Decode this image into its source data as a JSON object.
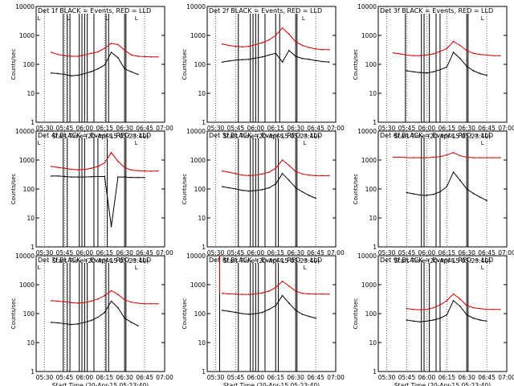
{
  "figure": {
    "ylabel": "Counts/sec",
    "xlabel": "Start Time (20-Apr-15 05:23:40)",
    "xticks": [
      "05:30",
      "05:45",
      "06:00",
      "06:15",
      "06:30",
      "06:45",
      "07:00"
    ],
    "yticks": [
      "1",
      "10",
      "100",
      "1000",
      "10000"
    ],
    "colors": {
      "events": "#000000",
      "lld": "#d00000",
      "axes": "#000000",
      "background": "#ffffff"
    }
  },
  "chart_data": [
    {
      "type": "line",
      "title": "Det 1f BLACK = Events, RED = LLD",
      "xlabel": "Start Time (20-Apr-15 05:23:40)",
      "ylabel": "Counts/sec",
      "xlim": [
        "05:23",
        "07:00"
      ],
      "ylim": [
        1,
        10000
      ],
      "yscale": "log",
      "x": [
        "05:35",
        "05:40",
        "05:45",
        "05:50",
        "05:55",
        "06:00",
        "06:05",
        "06:10",
        "06:15",
        "06:20",
        "06:25",
        "06:30",
        "06:35",
        "06:40",
        "06:45",
        "06:50",
        "06:55"
      ],
      "series": [
        {
          "name": "LLD",
          "color": "#d00000",
          "values": [
            260,
            220,
            200,
            190,
            190,
            210,
            240,
            270,
            360,
            530,
            480,
            310,
            210,
            190,
            185,
            180,
            180
          ]
        },
        {
          "name": "Events",
          "color": "#000000",
          "values": [
            50,
            48,
            45,
            40,
            42,
            48,
            56,
            70,
            95,
            260,
            170,
            70,
            55,
            45,
            null,
            null,
            null
          ]
        }
      ],
      "markers": {
        "lines": [
          "05:44",
          "05:47",
          "05:49",
          "05:56",
          "05:58",
          "06:00",
          "06:02",
          "06:07",
          "06:16",
          "06:18",
          "06:30",
          "06:31"
        ],
        "letters": {
          "05:24": "L",
          "05:46": "L",
          "06:15": "L",
          "06:37": "L"
        }
      }
    },
    {
      "type": "line",
      "title": "Det 2f BLACK = Events, RED = LLD",
      "xlabel": "Start Time (20-Apr-15 05:23:40)",
      "ylabel": "Counts/sec",
      "xlim": [
        "05:23",
        "07:00"
      ],
      "ylim": [
        1,
        10000
      ],
      "yscale": "log",
      "x": [
        "05:35",
        "05:40",
        "05:45",
        "05:50",
        "05:55",
        "06:00",
        "06:05",
        "06:10",
        "06:15",
        "06:20",
        "06:25",
        "06:30",
        "06:35",
        "06:40",
        "06:45",
        "06:50",
        "06:55"
      ],
      "series": [
        {
          "name": "LLD",
          "color": "#d00000",
          "values": [
            500,
            450,
            420,
            400,
            420,
            480,
            560,
            700,
            1000,
            1800,
            1100,
            600,
            450,
            380,
            340,
            320,
            320
          ]
        },
        {
          "name": "Events",
          "color": "#000000",
          "values": [
            120,
            130,
            140,
            145,
            150,
            165,
            180,
            210,
            240,
            120,
            300,
            190,
            160,
            150,
            135,
            125,
            120
          ]
        }
      ],
      "markers": {
        "lines": [
          "05:47",
          "05:56",
          "05:58",
          "06:00",
          "06:02",
          "06:07",
          "06:15",
          "06:18",
          "06:30",
          "06:31"
        ],
        "letters": {
          "06:34": "L"
        }
      }
    },
    {
      "type": "line",
      "title": "Det 3f BLACK = Events, RED = LLD",
      "xlabel": "Start Time (20-Apr-15 05:23:40)",
      "ylabel": "Counts/sec",
      "xlim": [
        "05:23",
        "07:00"
      ],
      "ylim": [
        1,
        10000
      ],
      "yscale": "log",
      "x": [
        "05:35",
        "05:40",
        "05:45",
        "05:50",
        "05:55",
        "06:00",
        "06:05",
        "06:10",
        "06:15",
        "06:20",
        "06:25",
        "06:30",
        "06:35",
        "06:40",
        "06:45",
        "06:50",
        "06:55"
      ],
      "series": [
        {
          "name": "LLD",
          "color": "#d00000",
          "values": [
            250,
            230,
            210,
            200,
            200,
            210,
            230,
            280,
            350,
            620,
            450,
            300,
            240,
            220,
            210,
            200,
            200
          ]
        },
        {
          "name": "Events",
          "color": "#000000",
          "values": [
            null,
            null,
            60,
            55,
            52,
            50,
            55,
            65,
            80,
            260,
            160,
            85,
            60,
            48,
            42,
            null,
            null
          ]
        }
      ],
      "markers": {
        "lines": [
          "05:44",
          "05:56",
          "05:58",
          "06:02",
          "06:07",
          "06:10",
          "06:30",
          "06:31"
        ],
        "letters": {
          "06:40": "L"
        }
      }
    },
    {
      "type": "line",
      "title": "Det 4f BLACK = Events, RED = LLD",
      "xlabel": "Start Time (20-Apr-15 05:23:40)",
      "ylabel": "Counts/sec",
      "xlim": [
        "05:23",
        "07:00"
      ],
      "ylim": [
        1,
        10000
      ],
      "yscale": "log",
      "x": [
        "05:35",
        "05:40",
        "05:45",
        "05:50",
        "05:55",
        "06:00",
        "06:05",
        "06:10",
        "06:15",
        "06:20",
        "06:25",
        "06:30",
        "06:35",
        "06:40",
        "06:45",
        "06:50",
        "06:55"
      ],
      "series": [
        {
          "name": "LLD",
          "color": "#d00000",
          "values": [
            600,
            560,
            520,
            480,
            460,
            470,
            520,
            600,
            800,
            1800,
            900,
            550,
            450,
            430,
            420,
            410,
            420
          ]
        },
        {
          "name": "Events",
          "color": "#000000",
          "values": [
            280,
            280,
            270,
            260,
            260,
            260,
            265,
            270,
            270,
            5,
            260,
            260,
            250,
            250,
            250,
            null,
            null
          ]
        }
      ],
      "markers": {
        "lines": [
          "05:44",
          "05:47",
          "05:56",
          "05:58",
          "06:00",
          "06:07",
          "06:10",
          "06:17",
          "06:30",
          "06:31"
        ],
        "letters": {
          "05:24": "L",
          "06:37": "L"
        }
      }
    },
    {
      "type": "line",
      "title": "Det 5f BLACK = Events, RED = LLD",
      "xlabel": "Start Time (20-Apr-15 05:23:40)",
      "ylabel": "Counts/sec",
      "xlim": [
        "05:23",
        "07:00"
      ],
      "ylim": [
        1,
        10000
      ],
      "yscale": "log",
      "x": [
        "05:35",
        "05:40",
        "05:45",
        "05:50",
        "05:55",
        "06:00",
        "06:05",
        "06:10",
        "06:15",
        "06:20",
        "06:25",
        "06:30",
        "06:35",
        "06:40",
        "06:45",
        "06:50",
        "06:55"
      ],
      "series": [
        {
          "name": "LLD",
          "color": "#d00000",
          "values": [
            420,
            380,
            340,
            300,
            290,
            300,
            330,
            380,
            520,
            1000,
            650,
            400,
            330,
            300,
            290,
            290,
            290
          ]
        },
        {
          "name": "Events",
          "color": "#000000",
          "values": [
            120,
            110,
            100,
            90,
            85,
            88,
            95,
            110,
            150,
            340,
            200,
            110,
            80,
            60,
            48,
            null,
            null
          ]
        }
      ],
      "markers": {
        "lines": [
          "05:47",
          "05:56",
          "05:58",
          "06:00",
          "06:02",
          "06:07",
          "06:15",
          "06:17",
          "06:30",
          "06:31"
        ],
        "letters": {
          "06:35": "L"
        }
      }
    },
    {
      "type": "line",
      "title": "Det 6f BLACK = Events, RED = LLD",
      "xlabel": "Start Time (20-Apr-15 05:23:40)",
      "ylabel": "Counts/sec",
      "xlim": [
        "05:23",
        "07:00"
      ],
      "ylim": [
        1,
        10000
      ],
      "yscale": "log",
      "x": [
        "05:35",
        "05:40",
        "05:45",
        "05:50",
        "05:55",
        "06:00",
        "06:05",
        "06:10",
        "06:15",
        "06:20",
        "06:25",
        "06:30",
        "06:35",
        "06:40",
        "06:45",
        "06:50",
        "06:55"
      ],
      "series": [
        {
          "name": "LLD",
          "color": "#d00000",
          "values": [
            1250,
            1250,
            1220,
            1200,
            1200,
            1200,
            1250,
            1300,
            1500,
            1800,
            1400,
            1250,
            1200,
            1200,
            1200,
            1200,
            1200
          ]
        },
        {
          "name": "Events",
          "color": "#000000",
          "values": [
            null,
            null,
            75,
            68,
            62,
            60,
            65,
            80,
            120,
            380,
            200,
            100,
            70,
            52,
            40,
            null,
            null
          ]
        }
      ],
      "markers": {
        "lines": [
          "05:56",
          "05:58",
          "06:07",
          "06:10",
          "06:30",
          "06:31"
        ],
        "letters": {
          "06:40": "L"
        }
      }
    },
    {
      "type": "line",
      "title": "Det 7f BLACK = Events, RED = LLD",
      "xlabel": "Start Time (20-Apr-15 05:23:40)",
      "ylabel": "Counts/sec",
      "xlim": [
        "05:23",
        "07:00"
      ],
      "ylim": [
        1,
        10000
      ],
      "yscale": "log",
      "x": [
        "05:35",
        "05:40",
        "05:45",
        "05:50",
        "05:55",
        "06:00",
        "06:05",
        "06:10",
        "06:15",
        "06:20",
        "06:25",
        "06:30",
        "06:35",
        "06:40",
        "06:45",
        "06:50",
        "06:55"
      ],
      "series": [
        {
          "name": "LLD",
          "color": "#d00000",
          "values": [
            280,
            270,
            260,
            240,
            230,
            240,
            270,
            320,
            420,
            620,
            460,
            300,
            250,
            230,
            220,
            220,
            220
          ]
        },
        {
          "name": "Events",
          "color": "#000000",
          "values": [
            50,
            48,
            45,
            42,
            44,
            50,
            58,
            75,
            110,
            270,
            160,
            70,
            50,
            38,
            null,
            null,
            null
          ]
        }
      ],
      "markers": {
        "lines": [
          "05:44",
          "05:47",
          "05:49",
          "05:56",
          "05:58",
          "06:00",
          "06:02",
          "06:07",
          "06:16",
          "06:18",
          "06:30",
          "06:31"
        ],
        "letters": {
          "05:24": "L",
          "06:37": "L"
        }
      }
    },
    {
      "type": "line",
      "title": "Det 8f BLACK = Events, RED = LLD",
      "xlabel": "Start Time (20-Apr-15 05:23:40)",
      "ylabel": "Counts/sec",
      "xlim": [
        "05:23",
        "07:00"
      ],
      "ylim": [
        1,
        10000
      ],
      "yscale": "log",
      "x": [
        "05:35",
        "05:40",
        "05:45",
        "05:50",
        "05:55",
        "06:00",
        "06:05",
        "06:10",
        "06:15",
        "06:20",
        "06:25",
        "06:30",
        "06:35",
        "06:40",
        "06:45",
        "06:50",
        "06:55"
      ],
      "series": [
        {
          "name": "LLD",
          "color": "#d00000",
          "values": [
            500,
            480,
            470,
            460,
            460,
            480,
            520,
            600,
            800,
            1300,
            900,
            600,
            500,
            480,
            470,
            470,
            470
          ]
        },
        {
          "name": "Events",
          "color": "#000000",
          "values": [
            130,
            120,
            110,
            100,
            95,
            100,
            110,
            140,
            190,
            420,
            230,
            130,
            95,
            80,
            70,
            null,
            null
          ]
        }
      ],
      "spike": {
        "at": "05:33",
        "value": 10000
      },
      "markers": {
        "lines": [
          "05:33",
          "05:47",
          "05:56",
          "05:58",
          "06:00",
          "06:02",
          "06:07",
          "06:15",
          "06:17",
          "06:30",
          "06:31"
        ],
        "letters": {
          "06:35": "L"
        }
      }
    },
    {
      "type": "line",
      "title": "Det 9f BLACK = Events, RED = LLD",
      "xlabel": "Start Time (20-Apr-15 05:23:40)",
      "ylabel": "Counts/sec",
      "xlim": [
        "05:23",
        "07:00"
      ],
      "ylim": [
        1,
        10000
      ],
      "yscale": "log",
      "x": [
        "05:35",
        "05:40",
        "05:45",
        "05:50",
        "05:55",
        "06:00",
        "06:05",
        "06:10",
        "06:15",
        "06:20",
        "06:25",
        "06:30",
        "06:35",
        "06:40",
        "06:45",
        "06:50",
        "06:55"
      ],
      "series": [
        {
          "name": "LLD",
          "color": "#d00000",
          "values": [
            null,
            null,
            150,
            140,
            135,
            140,
            160,
            200,
            280,
            480,
            320,
            190,
            160,
            150,
            140,
            140,
            140
          ]
        },
        {
          "name": "Events",
          "color": "#000000",
          "values": [
            null,
            null,
            60,
            55,
            52,
            55,
            60,
            70,
            90,
            280,
            180,
            90,
            70,
            60,
            55,
            null,
            null
          ]
        }
      ],
      "markers": {
        "lines": [
          "05:56",
          "05:58",
          "06:02",
          "06:07",
          "06:10",
          "06:30",
          "06:31"
        ],
        "letters": {
          "06:40": "L"
        }
      }
    }
  ]
}
